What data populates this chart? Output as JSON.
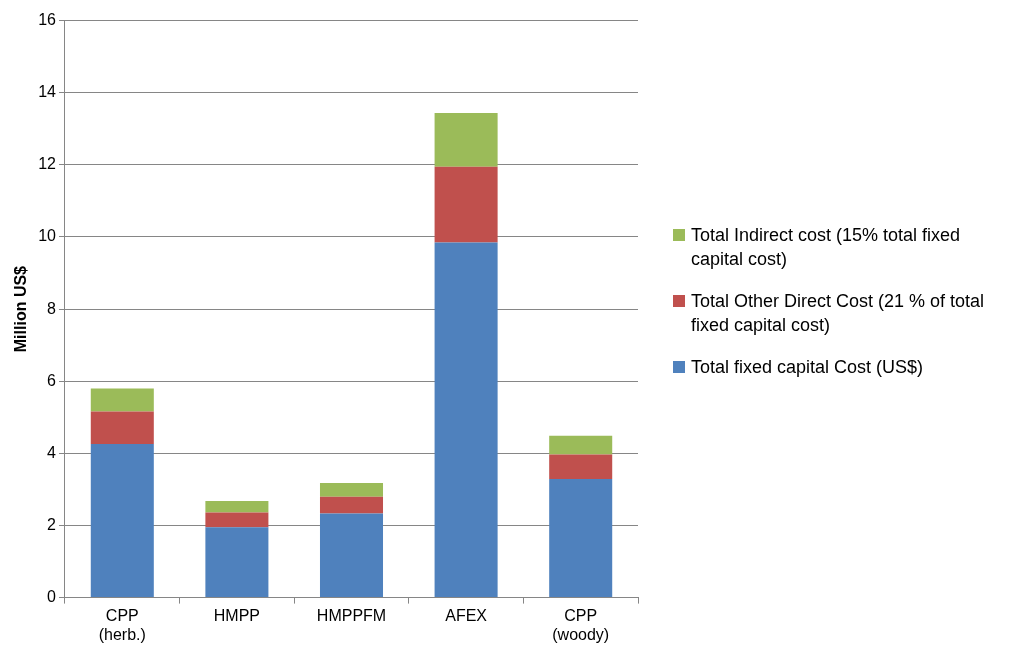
{
  "chart_data": {
    "type": "bar",
    "stacked": true,
    "ylabel": "Million US$",
    "categories": [
      "CPP (herb.)",
      "HMPP",
      "HMPPFM",
      "AFEX",
      "CPP (woody)"
    ],
    "series": [
      {
        "name": "Total fixed capital Cost (US$)",
        "color": "#4f81bd",
        "values": [
          4.26,
          1.95,
          2.33,
          9.85,
          3.29
        ]
      },
      {
        "name": "Total Other Direct Cost (21 % of total fixed capital cost)",
        "color": "#c0504d",
        "values": [
          0.9,
          0.41,
          0.47,
          2.1,
          0.68
        ]
      },
      {
        "name": "Total Indirect cost (15%  total fixed capital cost)",
        "color": "#9bbb59",
        "values": [
          0.64,
          0.32,
          0.38,
          1.49,
          0.52
        ]
      }
    ],
    "ylim": [
      0,
      16
    ],
    "yticks": [
      0,
      2,
      4,
      6,
      8,
      10,
      12,
      14,
      16
    ],
    "grid": "y",
    "legend": "right"
  }
}
